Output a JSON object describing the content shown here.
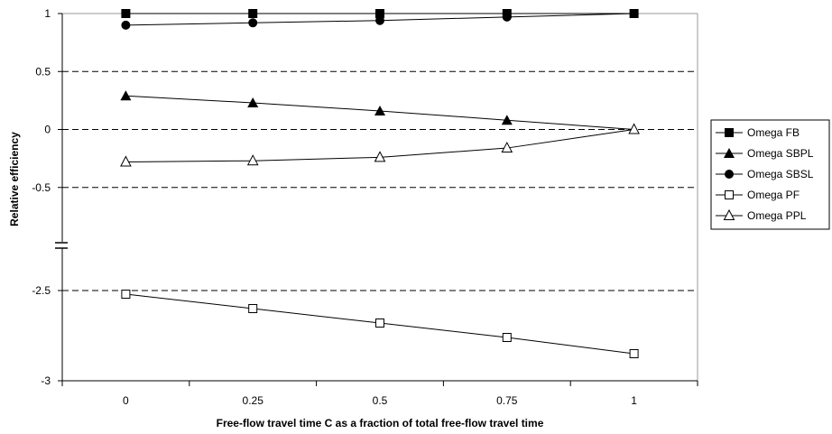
{
  "chart_data": {
    "type": "line",
    "xlabel": "Free-flow travel time C as a fraction of total free-flow travel time",
    "ylabel": "Relative efficiency",
    "x": [
      0,
      0.25,
      0.5,
      0.75,
      1
    ],
    "x_tick_labels": [
      "0",
      "0.25",
      "0.5",
      "0.75",
      "1"
    ],
    "xlim": [
      -0.125,
      1.125
    ],
    "y_tick_labels": [
      "1",
      "0.5",
      "0",
      "-0.5",
      "-2.5",
      "-3"
    ],
    "y_axis_break": "between -0.5 and -2.5",
    "ylim_upper": [
      -1.0,
      1
    ],
    "ylim_lower": [
      -3,
      -2.25
    ],
    "grid": "dashed horizontal lines at 0.5, 0, -0.5, -2.5",
    "legend_position": "right",
    "series": [
      {
        "name": "Omega FB",
        "marker": "filled-square",
        "values": [
          1.0,
          1.0,
          1.0,
          1.0,
          1.0
        ]
      },
      {
        "name": "Omega SBPL",
        "marker": "filled-triangle",
        "values": [
          0.29,
          0.23,
          0.16,
          0.08,
          0.0
        ]
      },
      {
        "name": "Omega SBSL",
        "marker": "filled-circle",
        "values": [
          0.9,
          0.92,
          0.94,
          0.97,
          1.0
        ]
      },
      {
        "name": "Omega PF",
        "marker": "open-square",
        "values": [
          -2.52,
          -2.6,
          -2.68,
          -2.76,
          -2.85
        ]
      },
      {
        "name": "Omega PPL",
        "marker": "open-triangle",
        "values": [
          -0.28,
          -0.27,
          -0.24,
          -0.16,
          0.0
        ]
      }
    ]
  }
}
